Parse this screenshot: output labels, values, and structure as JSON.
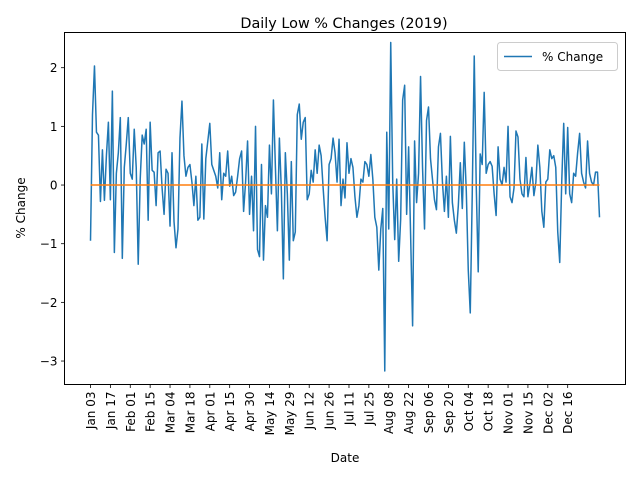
{
  "chart_data": {
    "type": "line",
    "title": "Daily Low % Changes (2019)",
    "xlabel": "Date",
    "ylabel": "% Change",
    "ylim": [
      -3.4,
      2.6
    ],
    "yticks": [
      -3,
      -2,
      -1,
      0,
      1,
      2
    ],
    "xticks": [
      "Jan 03",
      "Jan 17",
      "Feb 01",
      "Feb 15",
      "Mar 04",
      "Mar 18",
      "Apr 01",
      "Apr 15",
      "Apr 30",
      "May 14",
      "May 29",
      "Jun 12",
      "Jun 26",
      "Jul 11",
      "Jul 25",
      "Aug 08",
      "Aug 22",
      "Sep 06",
      "Sep 20",
      "Oct 04",
      "Oct 18",
      "Nov 01",
      "Nov 15",
      "Dec 02",
      "Dec 16"
    ],
    "xtick_index": [
      0,
      10,
      20,
      30,
      40,
      50,
      60,
      70,
      80,
      90,
      100,
      110,
      120,
      130,
      140,
      150,
      160,
      170,
      180,
      190,
      200,
      210,
      220,
      230,
      240
    ],
    "grid": false,
    "legend_position": "upper right",
    "series": [
      {
        "name": "% Change",
        "color": "#1f77b4",
        "values": [
          -0.95,
          1.2,
          2.03,
          0.9,
          0.85,
          -0.28,
          0.6,
          -0.26,
          0.5,
          1.07,
          -0.25,
          1.6,
          -1.15,
          0.2,
          0.55,
          1.15,
          -1.25,
          0.3,
          0.7,
          1.15,
          0.2,
          0.1,
          0.95,
          0.3,
          -1.35,
          0.1,
          0.85,
          0.7,
          0.95,
          -0.6,
          1.07,
          0.25,
          0.22,
          -0.35,
          0.55,
          0.58,
          -0.05,
          -0.5,
          0.27,
          0.2,
          -0.7,
          0.55,
          -0.62,
          -1.07,
          -0.75,
          0.8,
          1.43,
          0.5,
          0.15,
          0.3,
          0.35,
          0.05,
          -0.35,
          0.15,
          -0.6,
          -0.55,
          0.7,
          -0.58,
          0.45,
          0.75,
          1.05,
          0.35,
          0.25,
          0.15,
          -0.05,
          0.55,
          -0.25,
          0.2,
          0.15,
          0.58,
          -0.02,
          0.15,
          -0.18,
          -0.12,
          0.15,
          0.45,
          0.58,
          -0.45,
          0.05,
          0.75,
          -0.5,
          0.15,
          -0.78,
          1.0,
          -1.1,
          -1.22,
          0.35,
          -1.28,
          -0.35,
          -0.55,
          0.68,
          -0.15,
          1.45,
          0.3,
          -0.78,
          0.8,
          -0.1,
          -1.6,
          0.55,
          -0.15,
          -1.28,
          0.4,
          -0.95,
          -0.8,
          1.2,
          1.38,
          0.78,
          1.07,
          1.15,
          -0.25,
          -0.15,
          0.25,
          0.05,
          0.6,
          0.2,
          0.68,
          0.5,
          -0.05,
          -0.55,
          -0.95,
          0.35,
          0.45,
          0.8,
          0.55,
          0.05,
          0.78,
          -0.35,
          0.1,
          -0.22,
          0.72,
          0.2,
          0.45,
          0.3,
          -0.2,
          -0.55,
          -0.35,
          0.1,
          0.05,
          0.4,
          0.35,
          0.15,
          0.52,
          0.1,
          -0.55,
          -0.72,
          -1.45,
          -0.75,
          -0.4,
          -3.17,
          0.9,
          -0.75,
          2.43,
          0.05,
          -0.93,
          0.1,
          -1.3,
          -0.58,
          1.45,
          1.7,
          -0.5,
          0.65,
          -0.85,
          -2.4,
          0.75,
          -0.3,
          0.2,
          1.85,
          0.3,
          -0.75,
          1.1,
          1.33,
          0.45,
          0.1,
          -0.25,
          -0.42,
          0.65,
          0.88,
          0.05,
          -0.45,
          0.15,
          -0.55,
          0.83,
          -0.3,
          -0.6,
          -0.82,
          -0.35,
          0.38,
          -0.4,
          0.73,
          -0.1,
          -1.45,
          -2.18,
          -0.15,
          2.2,
          0.0,
          -1.48,
          0.53,
          0.35,
          1.58,
          0.2,
          0.35,
          0.4,
          0.32,
          -0.15,
          -0.52,
          0.65,
          0.1,
          0.0,
          0.3,
          0.05,
          1.0,
          -0.2,
          -0.3,
          -0.05,
          0.92,
          0.82,
          0.1,
          -0.15,
          -0.2,
          0.47,
          -0.2,
          0.02,
          0.3,
          -0.18,
          0.05,
          0.68,
          0.3,
          -0.45,
          -0.72,
          0.05,
          0.1,
          0.6,
          0.45,
          0.5,
          0.3,
          -0.8,
          -1.32,
          0.05,
          1.05,
          -0.15,
          0.98,
          -0.15,
          -0.3,
          0.2,
          0.15,
          0.55,
          0.88,
          0.2,
          0.05,
          -0.05,
          0.75,
          0.2,
          0.05,
          0.0,
          0.22,
          0.22,
          -0.55
        ]
      },
      {
        "name": "",
        "color": "#ff7f0e",
        "constant": 0.0
      }
    ]
  }
}
